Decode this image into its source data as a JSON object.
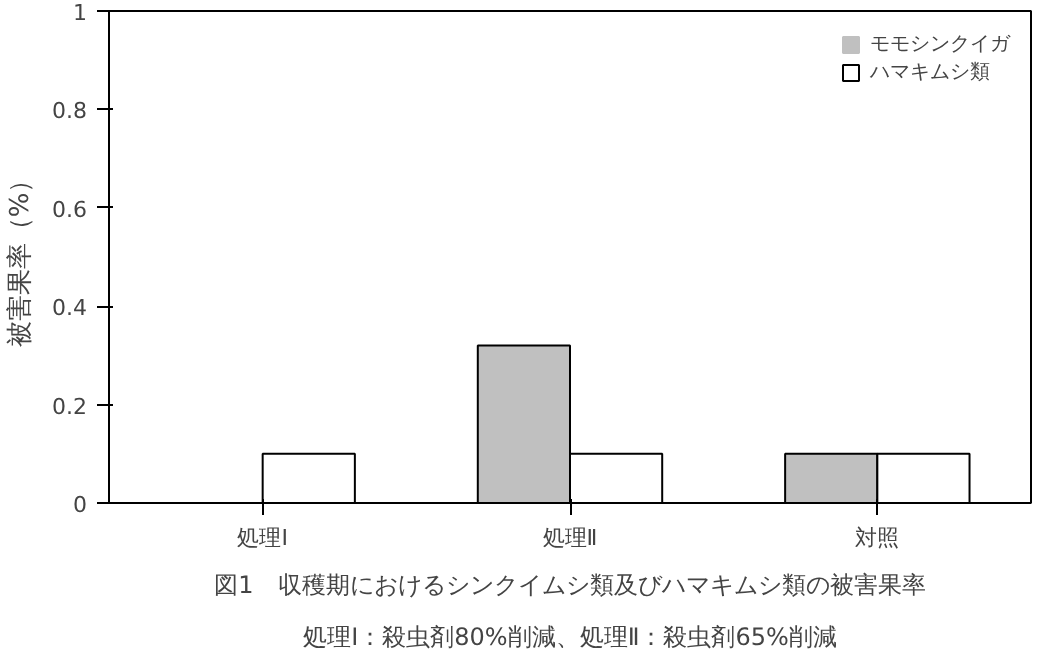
{
  "chart_data": {
    "type": "bar",
    "title": "図1　収穫期におけるシンクイムシ類及びハマキムシ類の被害果率",
    "subtitle": "処理Ⅰ：殺虫剤80%削減、処理Ⅱ：殺虫剤65%削減",
    "ylabel": "被害果率（%）",
    "categories": [
      "処理Ⅰ",
      "処理Ⅱ",
      "対照"
    ],
    "series": [
      {
        "name": "モモシンクイガ",
        "color": "#c0c0c0",
        "values": [
          0,
          0.32,
          0.1
        ]
      },
      {
        "name": "ハマキムシ類",
        "color": "#ffffff",
        "values": [
          0.1,
          0.1,
          0.1
        ]
      }
    ],
    "ylim": [
      0,
      1
    ],
    "yticks": [
      0,
      0.2,
      0.4,
      0.6,
      0.8,
      1
    ],
    "grid": false,
    "legend": "top right"
  }
}
